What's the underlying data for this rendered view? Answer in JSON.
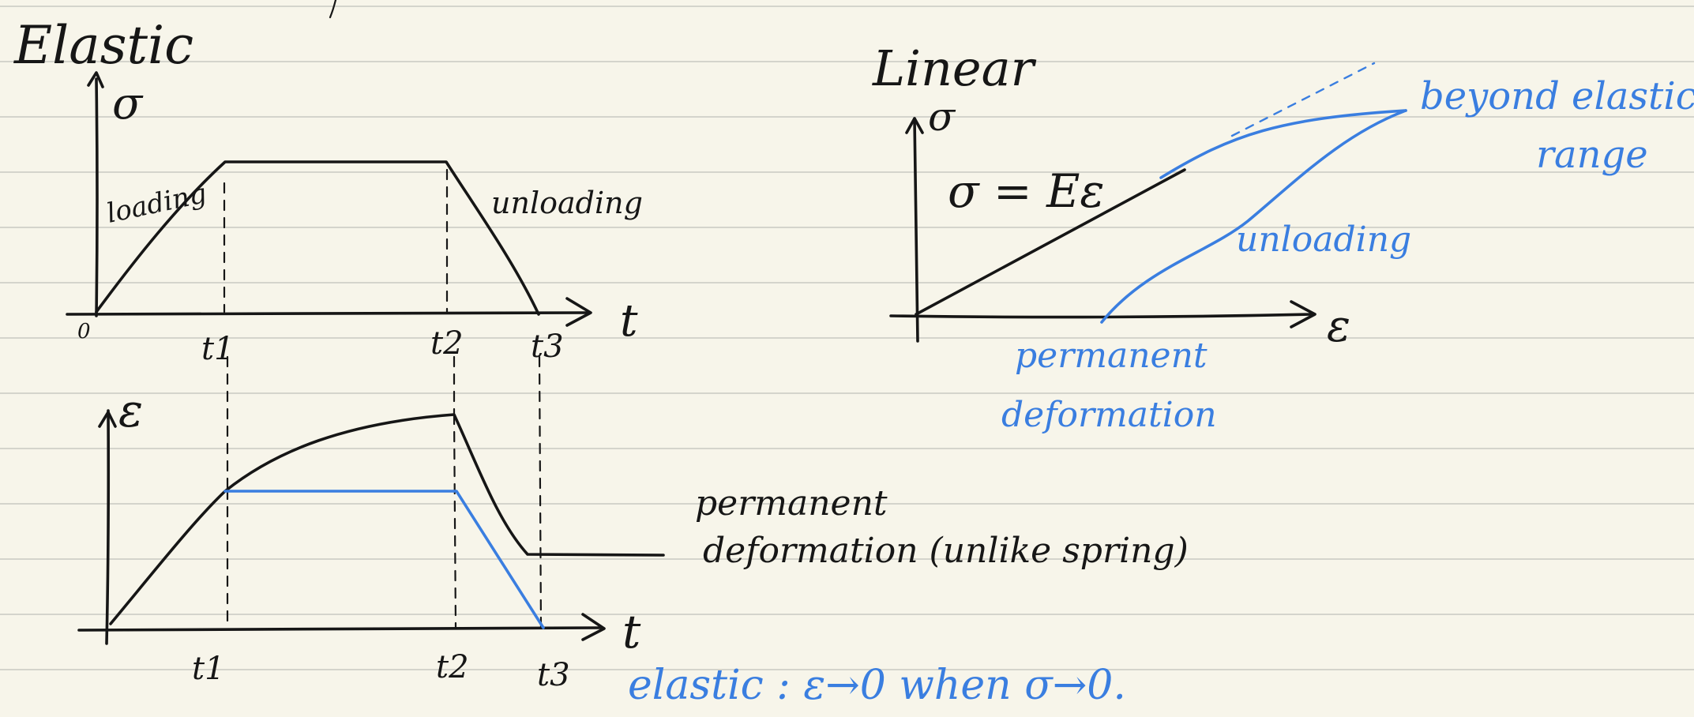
{
  "colors": {
    "paper": "#f7f5ea",
    "rule_line": "#d4d4cc",
    "ink_black": "#161616",
    "ink_blue": "#3a7ee0"
  },
  "left_top_graph": {
    "title": "Elastic",
    "y_axis_label": "σ",
    "x_axis_label": "t",
    "origin_label": "0",
    "segment_labels": {
      "rise": "loading",
      "fall": "unloading"
    },
    "tick_labels": [
      "t1",
      "t2",
      "t3"
    ]
  },
  "left_bottom_graph": {
    "y_axis_label": "ε",
    "x_axis_label": "t",
    "tick_labels": [
      "t1",
      "t2",
      "t3"
    ]
  },
  "middle_notes": {
    "permanent_line1": "permanent",
    "permanent_line2": "deformation (unlike spring)",
    "elastic_condition": "elastic : ε→0 when σ→0."
  },
  "right_graph": {
    "title": "Linear",
    "y_axis_label": "σ",
    "x_axis_label": "ε",
    "equation": "σ = Eε",
    "beyond_line1": "beyond elastic",
    "beyond_line2": "range",
    "unloading_label": "unloading",
    "permanent_line1": "permanent",
    "permanent_line2": "deformation"
  }
}
